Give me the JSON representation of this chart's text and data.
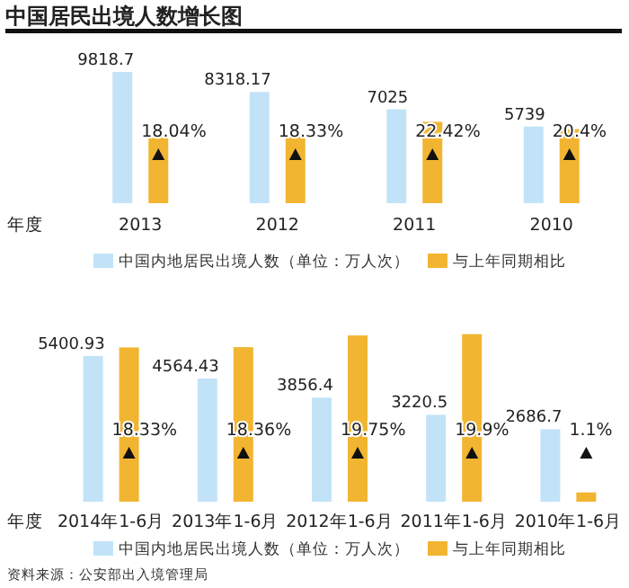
{
  "chart_data": [
    {
      "type": "bar",
      "title": "中国居民出境人数增长图",
      "xlabel": "年度",
      "categories": [
        "2013",
        "2012",
        "2011",
        "2010"
      ],
      "series": [
        {
          "name": "中国内地居民出境人数（单位：万人次）",
          "color": "#c2e3f7",
          "values": [
            9818.7,
            8318.17,
            7025,
            5739
          ],
          "value_labels": [
            "9818.7",
            "8318.17",
            "7025",
            "5739"
          ]
        },
        {
          "name": "与上年同期相比",
          "color": "#f2b531",
          "values": [
            18.04,
            18.33,
            22.42,
            20.4
          ],
          "axis": "y2",
          "value_labels": [
            "18.04%",
            "18.33%",
            "22.42%",
            "20.4%"
          ]
        }
      ],
      "legend": "bottom"
    },
    {
      "type": "bar",
      "xlabel": "年度",
      "categories": [
        "2014年1-6月",
        "2013年1-6月",
        "2012年1-6月",
        "2011年1-6月",
        "2010年1-6月"
      ],
      "series": [
        {
          "name": "中国内地居民出境人数（单位：万人次）",
          "color": "#c2e3f7",
          "values": [
            5400.93,
            4564.43,
            3856.4,
            3220.5,
            2686.7
          ],
          "value_labels": [
            "5400.93",
            "4564.43",
            "3856.4",
            "3220.5",
            "2686.7"
          ]
        },
        {
          "name": "与上年同期相比",
          "color": "#f2b531",
          "values": [
            18.33,
            18.36,
            19.75,
            19.9,
            1.1
          ],
          "axis": "y2",
          "value_labels": [
            "18.33%",
            "18.36%",
            "19.75%",
            "19.9%",
            "1.1%"
          ]
        }
      ],
      "legend": "bottom",
      "annotations": [
        "资料来源：公安部出入境管理局"
      ]
    }
  ]
}
